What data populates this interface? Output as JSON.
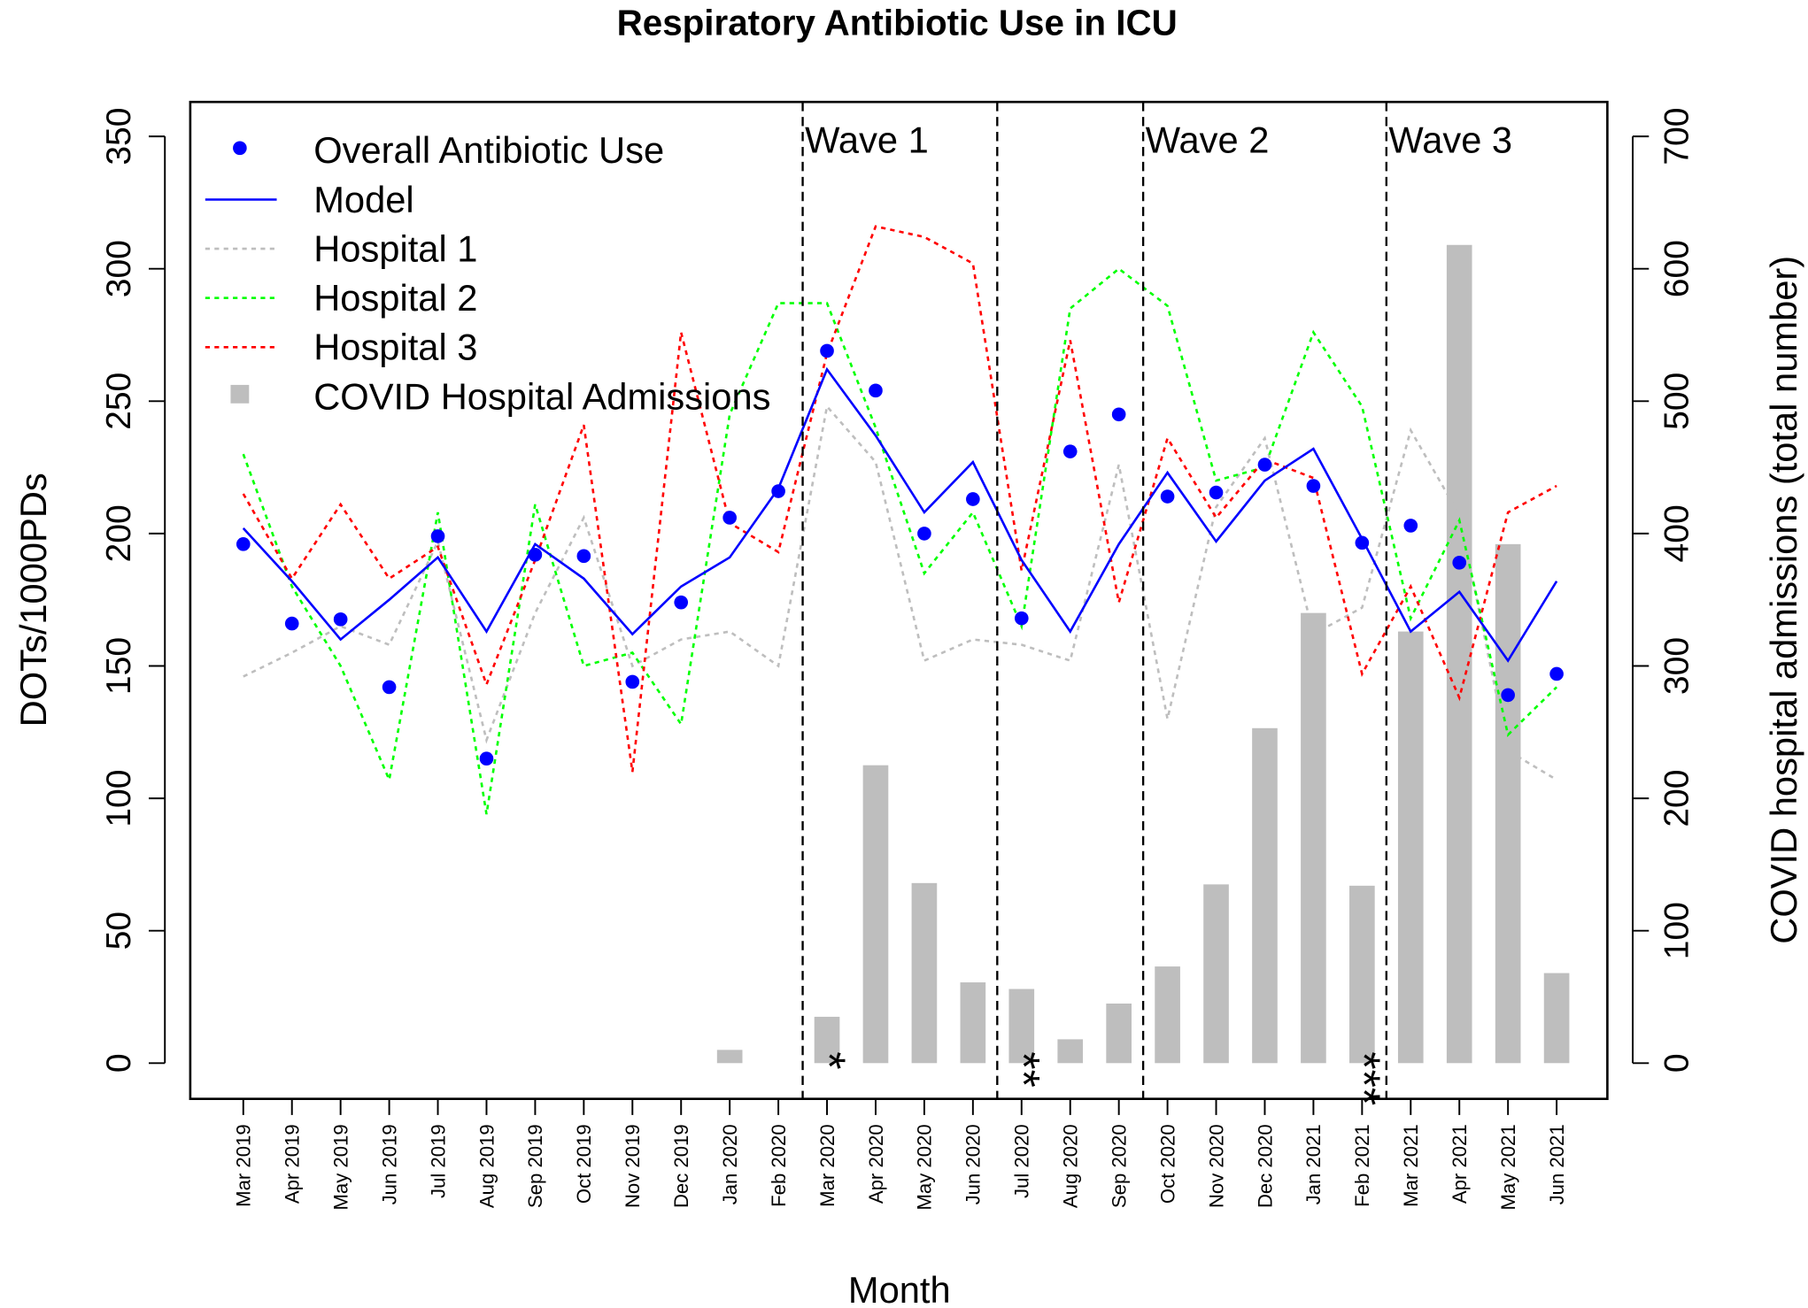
{
  "chart_data": {
    "type": "combo",
    "title": "Respiratory Antibiotic Use in ICU",
    "x_label": "Month",
    "y_label": "DOTs/1000PDs",
    "y2_label": "COVID hospital admissions (total number)",
    "categories": [
      "Mar 2019",
      "Apr 2019",
      "May 2019",
      "Jun 2019",
      "Jul 2019",
      "Aug 2019",
      "Sep 2019",
      "Oct 2019",
      "Nov 2019",
      "Dec 2019",
      "Jan 2020",
      "Feb 2020",
      "Mar 2020",
      "Apr 2020",
      "May 2020",
      "Jun 2020",
      "Jul 2020",
      "Aug 2020",
      "Sep 2020",
      "Oct 2020",
      "Nov 2020",
      "Dec 2020",
      "Jan 2021",
      "Feb 2021",
      "Mar 2021",
      "Apr 2021",
      "May 2021",
      "Jun 2021"
    ],
    "ylim": [
      -13.5,
      363
    ],
    "yticks": [
      0,
      50,
      100,
      150,
      200,
      250,
      300,
      350
    ],
    "y2lim": [
      -27,
      726
    ],
    "y2ticks": [
      0,
      100,
      200,
      300,
      400,
      500,
      600,
      700
    ],
    "series": [
      {
        "name": "COVID Hospital Admissions",
        "type": "bar",
        "axis": "y2",
        "color": "#bebebe",
        "values": [
          null,
          null,
          null,
          null,
          null,
          null,
          null,
          null,
          null,
          null,
          10,
          null,
          35,
          225,
          136,
          61,
          56,
          18,
          45,
          73,
          135,
          253,
          340,
          134,
          326,
          618,
          392,
          68
        ]
      },
      {
        "name": "Hospital 1",
        "type": "line",
        "dash": true,
        "color": "#bebebe",
        "values": [
          146,
          155,
          165,
          158,
          197,
          122,
          170,
          206,
          150,
          160,
          163,
          150,
          248,
          227,
          152,
          160,
          158,
          152,
          226,
          130,
          210,
          236,
          162,
          172,
          239,
          207,
          118,
          107
        ]
      },
      {
        "name": "Hospital 2",
        "type": "line",
        "dash": true,
        "color": "#00ff00",
        "values": [
          230,
          180,
          150,
          107,
          208,
          94,
          211,
          150,
          155,
          128,
          245,
          287,
          287,
          240,
          185,
          208,
          165,
          285,
          300,
          286,
          220,
          225,
          276,
          248,
          168,
          205,
          124,
          142
        ]
      },
      {
        "name": "Hospital 3",
        "type": "line",
        "dash": true,
        "color": "#ff0000",
        "values": [
          215,
          183,
          211,
          183,
          195,
          143,
          190,
          241,
          110,
          276,
          204,
          193,
          268,
          316,
          312,
          302,
          186,
          273,
          174,
          236,
          206,
          228,
          221,
          147,
          180,
          138,
          208,
          218
        ]
      },
      {
        "name": "Model",
        "type": "line",
        "dash": false,
        "color": "#0000ff",
        "values": [
          202,
          182,
          160,
          175,
          191,
          163,
          196,
          183,
          162,
          180,
          191,
          217,
          262,
          237,
          208,
          227,
          190,
          163,
          196,
          223,
          197,
          220,
          232,
          198,
          163,
          178,
          152,
          182
        ]
      },
      {
        "name": "Overall Antibiotic Use",
        "type": "scatter",
        "color": "#0000ff",
        "values": [
          196,
          166,
          167.6,
          142,
          199,
          115,
          192,
          191.5,
          144,
          174,
          206,
          216,
          269,
          254,
          200,
          213,
          168,
          231,
          245,
          214,
          215.5,
          226,
          218,
          196.5,
          203,
          189,
          139,
          147
        ]
      }
    ],
    "legend_order": [
      5,
      4,
      1,
      2,
      3,
      0
    ],
    "legend": "top-left",
    "dividers": [
      "Mar 2020",
      "Jul 2020",
      "Oct 2020",
      "Mar 2021"
    ],
    "annotations": [
      {
        "text": "Wave 1",
        "at": "Mar 2020"
      },
      {
        "text": "Wave 2",
        "at": "Oct 2020"
      },
      {
        "text": "Wave 3",
        "at": "Mar 2021"
      }
    ],
    "markers": [
      {
        "text": "*",
        "at": "Mar 2020"
      },
      {
        "text": "**",
        "at": "Jul 2020"
      },
      {
        "text": "***",
        "at": "Feb 2021"
      }
    ]
  }
}
